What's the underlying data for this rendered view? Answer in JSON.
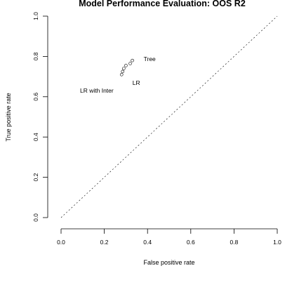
{
  "chart_data": {
    "type": "scatter",
    "title": "Model Performance Evaluation: OOS R2",
    "xlabel": "False positive rate",
    "ylabel": "True positive rate",
    "xlim": [
      0,
      1
    ],
    "ylim": [
      0,
      1
    ],
    "x_ticks": [
      0.0,
      0.2,
      0.4,
      0.6,
      0.8,
      1.0
    ],
    "y_ticks": [
      0.0,
      0.2,
      0.4,
      0.6,
      0.8,
      1.0
    ],
    "x_tick_labels": [
      "0.0",
      "0.2",
      "0.4",
      "0.6",
      "0.8",
      "1.0"
    ],
    "y_tick_labels": [
      "0.0",
      "0.2",
      "0.4",
      "0.6",
      "0.8",
      "1.0"
    ],
    "reference_line": "diagonal",
    "grid": false,
    "points": [
      {
        "label": "Tree",
        "x": 0.33,
        "y": 0.78
      },
      {
        "label": "",
        "x": 0.32,
        "y": 0.765
      },
      {
        "label": "",
        "x": 0.3,
        "y": 0.755
      },
      {
        "label": "",
        "x": 0.29,
        "y": 0.74
      },
      {
        "label": "LR",
        "x": 0.285,
        "y": 0.725
      },
      {
        "label": "LR with Inter",
        "x": 0.28,
        "y": 0.71
      }
    ]
  }
}
